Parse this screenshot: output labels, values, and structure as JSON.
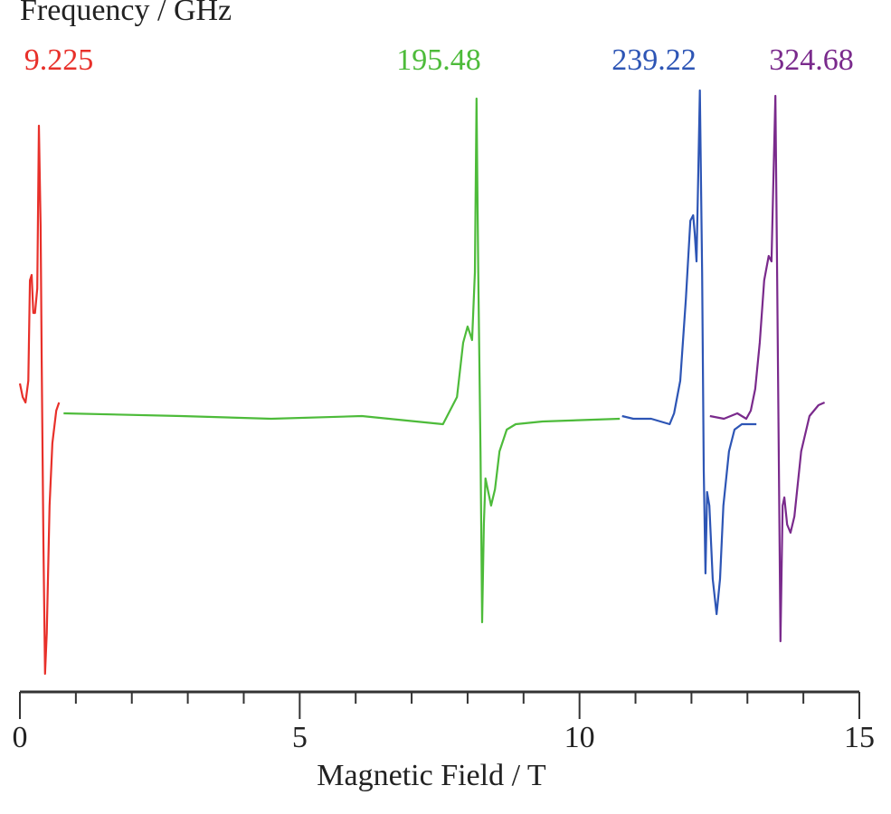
{
  "chart_data": {
    "type": "line",
    "title": "",
    "legend_title": "Frequency / GHz",
    "xlabel": "Magnetic Field / T",
    "ylabel": "",
    "xlim": [
      0,
      15
    ],
    "x_ticks_major": [
      "0",
      "5",
      "10",
      "15"
    ],
    "x_tick_minor_step": 1,
    "y_axis_shown": false,
    "grid": false,
    "legend_placement": "top, labels above each spectrum",
    "series": [
      {
        "name": "9.225",
        "color": "#e8302a",
        "x": [
          0,
          0.05,
          0.1,
          0.15,
          0.18,
          0.21,
          0.24,
          0.27,
          0.31,
          0.34,
          0.37,
          0.39,
          0.42,
          0.45,
          0.48,
          0.53,
          0.58,
          0.65,
          0.7
        ],
        "y": [
          0.12,
          0.07,
          0.05,
          0.13,
          0.5,
          0.52,
          0.38,
          0.38,
          0.47,
          1.07,
          0.7,
          0.2,
          -0.47,
          -0.95,
          -0.8,
          -0.33,
          -0.1,
          0.02,
          0.05
        ]
      },
      {
        "name": "195.48",
        "color": "#4dbb3a",
        "x": [
          0.78,
          2.88,
          4.49,
          6.11,
          7.56,
          7.81,
          7.92,
          8.0,
          8.05,
          8.08,
          8.13,
          8.16,
          8.19,
          8.23,
          8.26,
          8.29,
          8.32,
          8.37,
          8.42,
          8.49,
          8.57,
          8.7,
          8.86,
          9.34,
          10.72
        ],
        "y": [
          0.01,
          0,
          -0.01,
          0,
          -0.03,
          0.07,
          0.27,
          0.33,
          0.3,
          0.28,
          0.53,
          1.17,
          0.53,
          -0.13,
          -0.76,
          -0.4,
          -0.23,
          -0.28,
          -0.33,
          -0.27,
          -0.13,
          -0.05,
          -0.03,
          -0.02,
          -0.01
        ]
      },
      {
        "name": "239.22",
        "color": "#2d55b5",
        "x": [
          10.76,
          10.96,
          11.28,
          11.61,
          11.69,
          11.8,
          11.9,
          11.98,
          12.03,
          12.06,
          12.09,
          12.12,
          12.15,
          12.19,
          12.22,
          12.25,
          12.28,
          12.32,
          12.38,
          12.45,
          12.51,
          12.57,
          12.67,
          12.77,
          12.9,
          13.06,
          13.16
        ],
        "y": [
          0,
          -0.01,
          -0.01,
          -0.03,
          0.01,
          0.13,
          0.43,
          0.72,
          0.74,
          0.67,
          0.57,
          0.87,
          1.2,
          0.53,
          -0.2,
          -0.58,
          -0.28,
          -0.33,
          -0.6,
          -0.73,
          -0.6,
          -0.33,
          -0.13,
          -0.05,
          -0.03,
          -0.03,
          -0.03
        ]
      },
      {
        "name": "324.68",
        "color": "#7a2a8c",
        "x": [
          12.33,
          12.58,
          12.82,
          12.98,
          13.06,
          13.14,
          13.22,
          13.3,
          13.38,
          13.43,
          13.46,
          13.5,
          13.53,
          13.56,
          13.59,
          13.63,
          13.66,
          13.71,
          13.77,
          13.84,
          13.96,
          14.11,
          14.27,
          14.38
        ],
        "y": [
          0,
          -0.01,
          0.01,
          -0.01,
          0.02,
          0.1,
          0.27,
          0.5,
          0.59,
          0.57,
          0.83,
          1.18,
          0.53,
          -0.13,
          -0.83,
          -0.33,
          -0.3,
          -0.4,
          -0.43,
          -0.37,
          -0.13,
          0,
          0.04,
          0.05
        ]
      }
    ]
  }
}
